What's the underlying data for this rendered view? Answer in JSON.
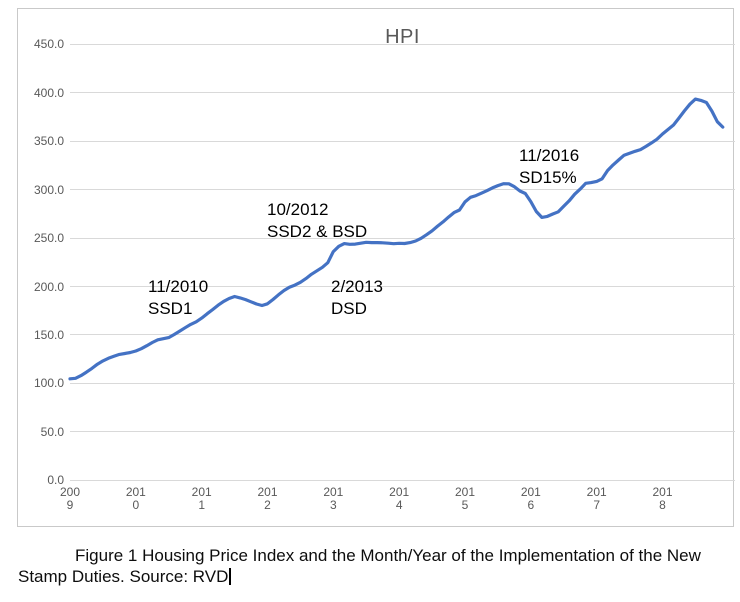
{
  "chart_data": {
    "type": "line",
    "title": "HPI",
    "frequency": "monthly",
    "x_start": "2009-01",
    "x_end": "2018-12",
    "xlabel": "",
    "ylabel": "",
    "ylim": [
      0,
      450
    ],
    "grid": "horizontal",
    "legend": "none",
    "y_tick_labels": [
      "450.0",
      "400.0",
      "350.0",
      "300.0",
      "250.0",
      "200.0",
      "150.0",
      "100.0",
      "50.0",
      "0.0"
    ],
    "x_tick_labels": [
      {
        "line1": "200",
        "line2": "9"
      },
      {
        "line1": "201",
        "line2": "0"
      },
      {
        "line1": "201",
        "line2": "1"
      },
      {
        "line1": "201",
        "line2": "2"
      },
      {
        "line1": "201",
        "line2": "3"
      },
      {
        "line1": "201",
        "line2": "4"
      },
      {
        "line1": "201",
        "line2": "5"
      },
      {
        "line1": "201",
        "line2": "6"
      },
      {
        "line1": "201",
        "line2": "7"
      },
      {
        "line1": "201",
        "line2": "8"
      }
    ],
    "series": [
      {
        "name": "HPI",
        "color": "#4472C4",
        "values": [
          104.8,
          105.3,
          108.1,
          111.7,
          115.5,
          119.8,
          123.2,
          125.9,
          128.0,
          129.9,
          130.9,
          131.9,
          133.5,
          135.8,
          138.9,
          142.2,
          145.0,
          146.1,
          147.3,
          150.5,
          154.0,
          157.5,
          160.9,
          163.6,
          167.4,
          172.0,
          176.2,
          180.7,
          184.6,
          187.6,
          189.7,
          188.3,
          186.5,
          184.2,
          182.0,
          180.4,
          182.2,
          186.6,
          191.5,
          195.9,
          199.3,
          201.5,
          204.4,
          208.2,
          212.6,
          216.2,
          219.8,
          224.6,
          236.0,
          241.5,
          244.3,
          243.6,
          243.8,
          244.7,
          245.6,
          245.3,
          245.3,
          245.1,
          244.7,
          244.2,
          244.6,
          244.4,
          245.3,
          247.0,
          249.8,
          253.5,
          257.5,
          262.4,
          266.7,
          271.6,
          276.3,
          279.0,
          287.3,
          292.1,
          293.8,
          296.3,
          298.9,
          301.8,
          304.2,
          306.1,
          306.0,
          303.0,
          298.6,
          296.0,
          287.7,
          277.4,
          271.3,
          272.4,
          274.9,
          277.1,
          282.8,
          288.5,
          295.3,
          300.5,
          306.5,
          307.3,
          308.5,
          311.2,
          319.7,
          325.5,
          330.6,
          335.5,
          337.6,
          339.6,
          341.3,
          344.6,
          348.2,
          352.1,
          357.4,
          362.1,
          366.7,
          373.8,
          381.3,
          388.2,
          393.4,
          392.1,
          389.9,
          381.1,
          370.1,
          364.5
        ]
      }
    ],
    "annotations": [
      {
        "line1": "11/2010",
        "line2": "SSD1"
      },
      {
        "line1": "10/2012",
        "line2": "SSD2 & BSD"
      },
      {
        "line1": "2/2013",
        "line2": "DSD"
      },
      {
        "line1": "11/2016",
        "line2": "SD15%"
      }
    ]
  },
  "colors": {
    "line": "#4472C4",
    "title_text": "#595959",
    "axis_text": "#595959",
    "gridline": "#d9d9d9",
    "chart_border": "#c9c9c9",
    "annotation_text": "#000000"
  },
  "caption": {
    "line1": "Figure 1 Housing Price Index and the Month/Year of the Implementation of the New",
    "line2": "Stamp Duties. Source: RVD"
  }
}
